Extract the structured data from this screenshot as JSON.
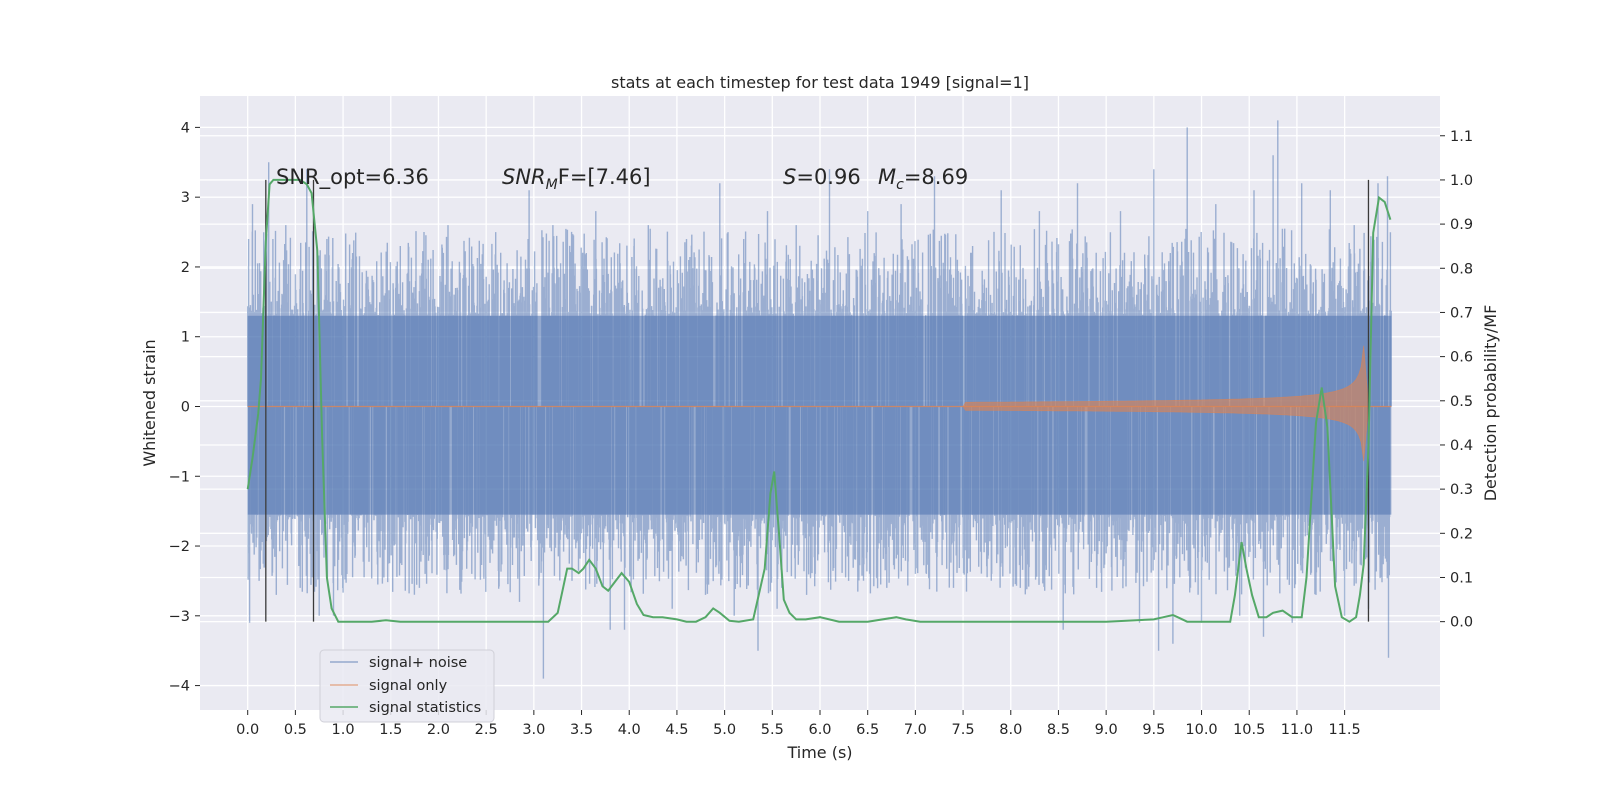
{
  "chart_data": {
    "type": "line",
    "title": "stats at each timestep for test data 1949 [signal=1]",
    "xlabel": "Time (s)",
    "ylabel": "Whitened strain",
    "y2label": "Detection probability/MF",
    "xlim": [
      -0.5,
      12.5
    ],
    "ylim": [
      -4.35,
      4.45
    ],
    "y2lim": [
      -0.2,
      1.19
    ],
    "x_ticks": [
      0.0,
      0.5,
      1.0,
      1.5,
      2.0,
      2.5,
      3.0,
      3.5,
      4.0,
      4.5,
      5.0,
      5.5,
      6.0,
      6.5,
      7.0,
      7.5,
      8.0,
      8.5,
      9.0,
      9.5,
      10.0,
      10.5,
      11.0,
      11.5
    ],
    "x_tick_labels": [
      "0.0",
      "0.5",
      "1.0",
      "1.5",
      "2.0",
      "2.5",
      "3.0",
      "3.5",
      "4.0",
      "4.5",
      "5.0",
      "5.5",
      "6.0",
      "6.5",
      "7.0",
      "7.5",
      "8.0",
      "8.5",
      "9.0",
      "9.5",
      "10.0",
      "10.5",
      "11.0",
      "11.5"
    ],
    "y_ticks": [
      -4,
      -3,
      -2,
      -1,
      0,
      1,
      2,
      3,
      4
    ],
    "y_tick_labels": [
      "−4",
      "−3",
      "−2",
      "−1",
      "0",
      "1",
      "2",
      "3",
      "4"
    ],
    "y2_ticks": [
      0.0,
      0.1,
      0.2,
      0.3,
      0.4,
      0.5,
      0.6,
      0.7,
      0.8,
      0.9,
      1.0,
      1.1
    ],
    "y2_tick_labels": [
      "0.0",
      "0.1",
      "0.2",
      "0.3",
      "0.4",
      "0.5",
      "0.6",
      "0.7",
      "0.8",
      "0.9",
      "1.0",
      "1.1"
    ],
    "grid": true,
    "legend_position": "lower-left",
    "annotations": {
      "snr_opt": "SNR_opt=6.36",
      "snr_mf_base": "SNR",
      "snr_mf_sub": "M",
      "snr_mf_rest": "F=[7.46]",
      "s_var": "S",
      "s_rest": "=0.96",
      "mc_var": "M",
      "mc_sub": "c",
      "mc_rest": "=8.69"
    },
    "vlines": [
      0.19,
      0.69,
      11.75
    ],
    "series": [
      {
        "name": "signal+ noise",
        "color": "#4c72b0",
        "t_range": [
          0.0,
          11.99
        ],
        "envelope": {
          "lower": -1.55,
          "upper": 1.3
        },
        "spike_peaks": [
          [
            0.01,
            2.4
          ],
          [
            0.02,
            -3.1
          ],
          [
            0.05,
            2.9
          ],
          [
            0.12,
            -2.5
          ],
          [
            0.22,
            3.5
          ],
          [
            0.3,
            -2.7
          ],
          [
            0.4,
            2.6
          ],
          [
            0.55,
            -2.6
          ],
          [
            0.62,
            3.4
          ],
          [
            0.75,
            -3.0
          ],
          [
            0.83,
            2.4
          ],
          [
            0.9,
            -3.0
          ],
          [
            1.1,
            2.2
          ],
          [
            1.3,
            -2.3
          ],
          [
            1.6,
            2.3
          ],
          [
            1.8,
            -2.6
          ],
          [
            2.1,
            2.6
          ],
          [
            2.35,
            -2.4
          ],
          [
            2.6,
            2.5
          ],
          [
            2.85,
            -2.8
          ],
          [
            2.95,
            3.1
          ],
          [
            3.1,
            -3.9
          ],
          [
            3.2,
            2.6
          ],
          [
            3.4,
            -2.5
          ],
          [
            3.55,
            2.2
          ],
          [
            3.65,
            2.8
          ],
          [
            3.8,
            -3.2
          ],
          [
            3.95,
            -3.2
          ],
          [
            4.05,
            2.3
          ],
          [
            4.2,
            2.6
          ],
          [
            4.45,
            -2.9
          ],
          [
            4.6,
            2.4
          ],
          [
            4.8,
            -2.7
          ],
          [
            4.95,
            3.2
          ],
          [
            5.1,
            -3.0
          ],
          [
            5.2,
            2.4
          ],
          [
            5.35,
            -3.5
          ],
          [
            5.45,
            2.8
          ],
          [
            5.55,
            -2.9
          ],
          [
            5.6,
            -2.6
          ],
          [
            5.75,
            2.6
          ],
          [
            5.95,
            -2.4
          ],
          [
            6.1,
            3.4
          ],
          [
            6.3,
            -2.5
          ],
          [
            6.5,
            2.8
          ],
          [
            6.7,
            -2.6
          ],
          [
            6.85,
            2.9
          ],
          [
            7.0,
            -2.4
          ],
          [
            7.2,
            3.3
          ],
          [
            7.4,
            -2.6
          ],
          [
            7.6,
            2.3
          ],
          [
            7.8,
            -2.4
          ],
          [
            7.9,
            3.1
          ],
          [
            8.1,
            -2.6
          ],
          [
            8.3,
            2.8
          ],
          [
            8.55,
            -3.2
          ],
          [
            8.7,
            3.2
          ],
          [
            8.9,
            -2.6
          ],
          [
            9.15,
            2.8
          ],
          [
            9.35,
            -3.1
          ],
          [
            9.5,
            3.4
          ],
          [
            9.55,
            -3.5
          ],
          [
            9.7,
            -3.4
          ],
          [
            9.85,
            4.0
          ],
          [
            10.0,
            -3.1
          ],
          [
            10.15,
            2.9
          ],
          [
            10.4,
            -3.0
          ],
          [
            10.55,
            3.1
          ],
          [
            10.65,
            -3.3
          ],
          [
            10.75,
            3.6
          ],
          [
            10.8,
            4.1
          ],
          [
            10.95,
            -3.1
          ],
          [
            11.05,
            3.2
          ],
          [
            11.2,
            -2.7
          ],
          [
            11.35,
            3.1
          ],
          [
            11.5,
            -3.0
          ],
          [
            11.6,
            2.6
          ],
          [
            11.75,
            -2.9
          ],
          [
            11.85,
            3.2
          ],
          [
            11.95,
            3.3
          ],
          [
            11.96,
            -3.6
          ]
        ]
      },
      {
        "name": "signal only",
        "color": "#dd8452",
        "chirp": {
          "t_start": 7.5,
          "t_end": 11.75,
          "peak_amplitude": 1.0,
          "peak_time": 11.7
        }
      },
      {
        "name": "signal statistics",
        "color": "#55a868",
        "axis": "right",
        "x": [
          0.0,
          0.05,
          0.11,
          0.14,
          0.19,
          0.23,
          0.27,
          0.32,
          0.4,
          0.48,
          0.55,
          0.62,
          0.67,
          0.73,
          0.78,
          0.83,
          0.88,
          0.95,
          1.1,
          1.3,
          1.45,
          1.6,
          1.8,
          2.0,
          2.3,
          2.6,
          2.8,
          3.0,
          3.15,
          3.25,
          3.3,
          3.35,
          3.4,
          3.47,
          3.52,
          3.58,
          3.65,
          3.72,
          3.78,
          3.85,
          3.92,
          4.0,
          4.08,
          4.15,
          4.25,
          4.35,
          4.5,
          4.6,
          4.7,
          4.8,
          4.88,
          4.95,
          5.05,
          5.15,
          5.3,
          5.42,
          5.48,
          5.52,
          5.57,
          5.62,
          5.68,
          5.75,
          5.85,
          6.0,
          6.2,
          6.5,
          6.8,
          6.9,
          7.05,
          7.5,
          8.0,
          8.5,
          9.0,
          9.5,
          9.6,
          9.7,
          9.75,
          9.85,
          10.0,
          10.3,
          10.35,
          10.42,
          10.47,
          10.53,
          10.6,
          10.68,
          10.75,
          10.85,
          10.95,
          11.05,
          11.1,
          11.2,
          11.26,
          11.32,
          11.4,
          11.47,
          11.55,
          11.62,
          11.66,
          11.7,
          11.75,
          11.8,
          11.86,
          11.92,
          11.98
        ],
        "values": [
          0.3,
          0.37,
          0.47,
          0.55,
          0.86,
          0.99,
          1.0,
          1.0,
          1.0,
          1.0,
          1.0,
          0.99,
          0.97,
          0.84,
          0.42,
          0.1,
          0.03,
          0.0,
          0.0,
          0.0,
          0.003,
          0.0,
          0.0,
          0.0,
          0.0,
          0.0,
          0.0,
          0.0,
          0.0,
          0.02,
          0.07,
          0.12,
          0.12,
          0.11,
          0.12,
          0.14,
          0.12,
          0.08,
          0.07,
          0.09,
          0.11,
          0.09,
          0.04,
          0.015,
          0.01,
          0.01,
          0.005,
          0.0,
          0.0,
          0.01,
          0.03,
          0.02,
          0.002,
          0.0,
          0.005,
          0.12,
          0.29,
          0.34,
          0.2,
          0.05,
          0.02,
          0.005,
          0.005,
          0.01,
          0.0,
          0.0,
          0.01,
          0.005,
          0.0,
          0.0,
          0.0,
          0.0,
          0.0,
          0.005,
          0.01,
          0.015,
          0.01,
          0.0,
          0.0,
          0.0,
          0.06,
          0.18,
          0.12,
          0.06,
          0.01,
          0.01,
          0.02,
          0.025,
          0.01,
          0.01,
          0.1,
          0.45,
          0.53,
          0.44,
          0.08,
          0.01,
          0.0,
          0.01,
          0.06,
          0.13,
          0.4,
          0.88,
          0.96,
          0.95,
          0.91
        ]
      }
    ]
  }
}
